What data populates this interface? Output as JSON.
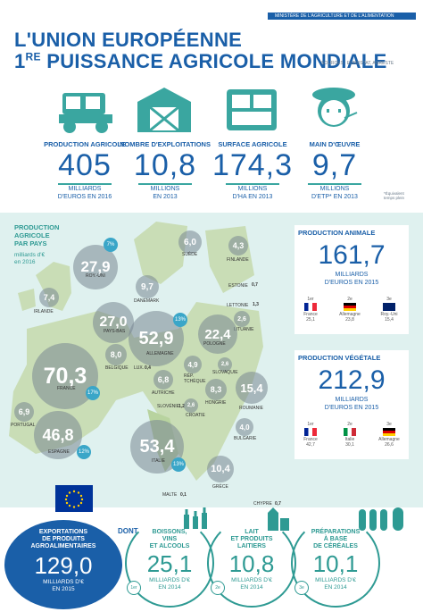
{
  "header": {
    "ministry": "MINISTÈRE DE L'AGRICULTURE ET DE L'ALIMENTATION",
    "title_line1": "L'UNION EUROPÉENNE",
    "title_line2_prefix": "1",
    "title_line2_sup": "RE",
    "title_line2_rest": " PUISSANCE AGRICOLE MONDIALE",
    "sources": "SOURCES : EUROSTAT, AGRESTE"
  },
  "stats": [
    {
      "label": "PRODUCTION AGRICOLE",
      "value": "405",
      "unit_line1": "MILLIARDS",
      "unit_line2": "D'EUROS EN 2016",
      "icon": "tractor-icon"
    },
    {
      "label": "NOMBRE D'EXPLOITATIONS",
      "value": "10,8",
      "unit_line1": "MILLIONS",
      "unit_line2": "EN 2013",
      "icon": "barn-icon"
    },
    {
      "label": "SURFACE AGRICOLE",
      "value": "174,3",
      "unit_line1": "MILLIONS",
      "unit_line2": "D'HA EN 2013",
      "icon": "field-icon"
    },
    {
      "label": "MAIN D'ŒUVRE",
      "value": "9,7",
      "unit_line1": "MILLIONS",
      "unit_line2": "D'ETP* EN 2013",
      "icon": "farmer-icon"
    }
  ],
  "footnote": "*Équivalent temps plein",
  "map": {
    "title_line1": "PRODUCTION",
    "title_line2": "AGRICOLE",
    "title_line3": "PAR PAYS",
    "subtitle_line1": "milliards d'€",
    "subtitle_line2": "en 2016",
    "countries": [
      {
        "name": "ROY.-UNI",
        "value": "27,9"
      },
      {
        "name": "IRLANDE",
        "value": "7,4"
      },
      {
        "name": "PAYS-BAS",
        "value": "27,0"
      },
      {
        "name": "DANEMARK",
        "value": "9,7"
      },
      {
        "name": "SUÈDE",
        "value": "6,0"
      },
      {
        "name": "FINLANDE",
        "value": "4,3"
      },
      {
        "name": "ESTONIE",
        "value": "0,7"
      },
      {
        "name": "LETTONIE",
        "value": "1,3"
      },
      {
        "name": "LITUANIE",
        "value": "2,6"
      },
      {
        "name": "POLOGNE",
        "value": "22,4"
      },
      {
        "name": "ALLEMAGNE",
        "value": "52,9"
      },
      {
        "name": "BELGIQUE",
        "value": "8,0"
      },
      {
        "name": "LUX.",
        "value": "0,4"
      },
      {
        "name": "FRANCE",
        "value": "70,3"
      },
      {
        "name": "RÉP. TCHÈQUE",
        "value": "4,9"
      },
      {
        "name": "SLOVAQUIE",
        "value": "2,6"
      },
      {
        "name": "AUTRICHE",
        "value": "6,8"
      },
      {
        "name": "HONGRIE",
        "value": "8,3"
      },
      {
        "name": "ROUMANIE",
        "value": "15,4"
      },
      {
        "name": "SLOVÉNIE",
        "value": "1,2"
      },
      {
        "name": "CROATIE",
        "value": "2,6"
      },
      {
        "name": "BULGARIE",
        "value": "4,0"
      },
      {
        "name": "PORTUGAL",
        "value": "6,9"
      },
      {
        "name": "ESPAGNE",
        "value": "46,8"
      },
      {
        "name": "ITALIE",
        "value": "53,4"
      },
      {
        "name": "GRÈCE",
        "value": "10,4"
      },
      {
        "name": "MALTE",
        "value": "0,1"
      },
      {
        "name": "CHYPRE",
        "value": "0,7"
      }
    ],
    "shares": {
      "roy_uni": "7%",
      "allemagne": "13%",
      "france": "17%",
      "espagne": "12%",
      "italie": "13%"
    }
  },
  "animal": {
    "title": "PRODUCTION ANIMALE",
    "value": "161,7",
    "unit_line1": "MILLIARDS",
    "unit_line2": "D'EUROS EN 2015",
    "ranks": [
      {
        "rank": "1er",
        "country": "France",
        "value": "25,1"
      },
      {
        "rank": "2e",
        "country": "Allemagne",
        "value": "23,8"
      },
      {
        "rank": "3e",
        "country": "Roy.-Uni",
        "value": "15,4"
      }
    ]
  },
  "vegetal": {
    "title": "PRODUCTION VÉGÉTALE",
    "value": "212,9",
    "unit_line1": "MILLIARDS",
    "unit_line2": "D'EUROS EN 2015",
    "ranks": [
      {
        "rank": "1er",
        "country": "France",
        "value": "42,7"
      },
      {
        "rank": "2e",
        "country": "Italie",
        "value": "30,1"
      },
      {
        "rank": "3e",
        "country": "Allemagne",
        "value": "26,6"
      }
    ]
  },
  "exports": {
    "title_line1": "EXPORTATIONS",
    "title_line2": "DE PRODUITS",
    "title_line3": "AGROALIMENTAIRES",
    "value": "129,0",
    "unit_line1": "MILLIARDS D'€",
    "unit_line2": "EN 2015",
    "dont": "DONT",
    "categories": [
      {
        "rank": "1er",
        "title_line1": "BOISSONS,",
        "title_line2": "VINS",
        "title_line3": "ET ALCOOLS",
        "value": "25,1",
        "unit_line1": "MILLIARDS D'€",
        "unit_line2": "EN 2014"
      },
      {
        "rank": "2e",
        "title_line1": "LAIT",
        "title_line2": "ET PRODUITS",
        "title_line3": "LAITIERS",
        "value": "10,8",
        "unit_line1": "MILLIARDS D'€",
        "unit_line2": "EN 2014"
      },
      {
        "rank": "3e",
        "title_line1": "PRÉPARATIONS",
        "title_line2": "À BASE",
        "title_line3": "DE CÉRÉALES",
        "value": "10,1",
        "unit_line1": "MILLIARDS D'€",
        "unit_line2": "EN 2014"
      }
    ]
  }
}
